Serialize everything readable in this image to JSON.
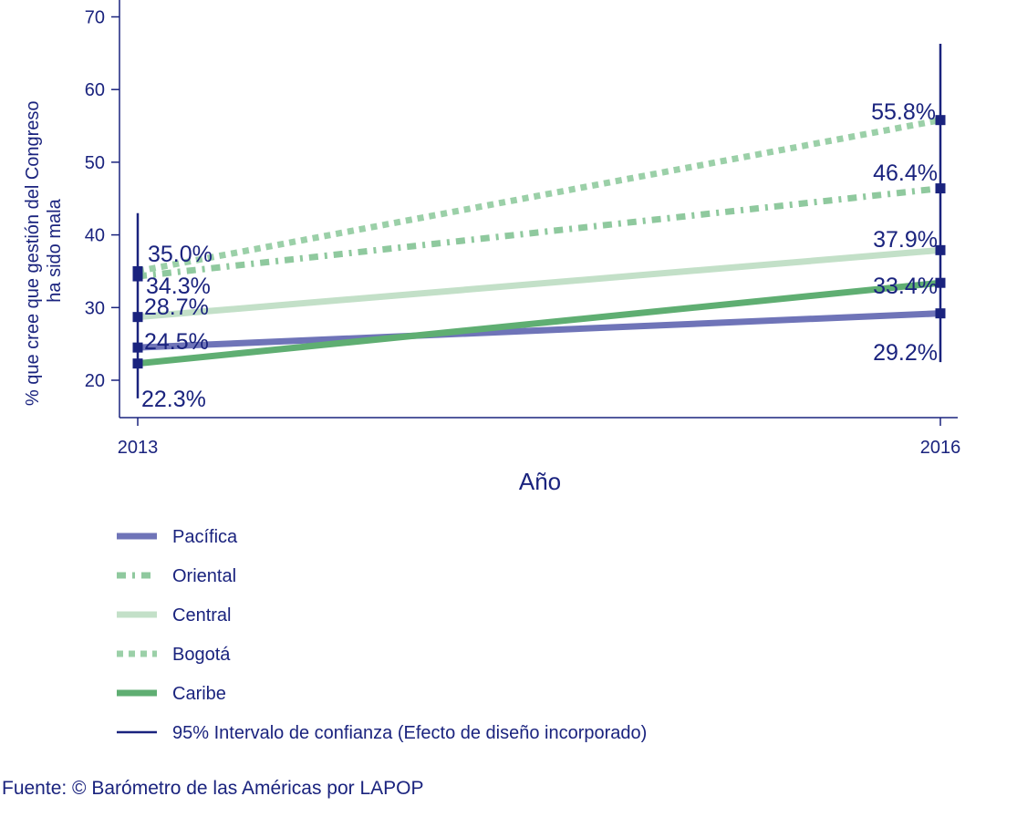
{
  "chart_data": {
    "type": "line",
    "xlabel": "Año",
    "ylabel_lines": [
      "% que cree que gestión del Congreso",
      "ha sido mala"
    ],
    "x": [
      "2013",
      "2016"
    ],
    "ylim": [
      14,
      70
    ],
    "yticks": [
      20,
      30,
      40,
      50,
      60,
      70
    ],
    "series": [
      {
        "name": "Pacífica",
        "values": [
          24.5,
          29.2
        ],
        "labels": [
          "24.5%",
          "29.2%"
        ],
        "color": "#6f74b8",
        "style": "solid"
      },
      {
        "name": "Oriental",
        "values": [
          34.3,
          46.4
        ],
        "labels": [
          "34.3%",
          "46.4%"
        ],
        "color": "#8fc99e",
        "style": "dashdot"
      },
      {
        "name": "Central",
        "values": [
          28.7,
          37.9
        ],
        "labels": [
          "28.7%",
          "37.9%"
        ],
        "color": "#c3e0c8",
        "style": "solid"
      },
      {
        "name": "Bogotá",
        "values": [
          35.0,
          55.8
        ],
        "labels": [
          "35.0%",
          "55.8%"
        ],
        "color": "#9bd0a8",
        "style": "dotted"
      },
      {
        "name": "Caribe",
        "values": [
          22.3,
          33.4
        ],
        "labels": [
          "22.3%",
          "33.4%"
        ],
        "color": "#5fae72",
        "style": "solid"
      }
    ],
    "confidence_intervals": [
      {
        "x": "2013",
        "low": 17.5,
        "high": 43.0
      },
      {
        "x": "2016",
        "low": 22.5,
        "high": 66.3
      }
    ],
    "ci_legend": "95% Intervalo de confianza (Efecto de diseño incorporado)",
    "ci_color": "#1a237e",
    "grid": false,
    "legend_position": "bottom-left"
  },
  "source": "Fuente: © Barómetro de las Américas por LAPOP"
}
